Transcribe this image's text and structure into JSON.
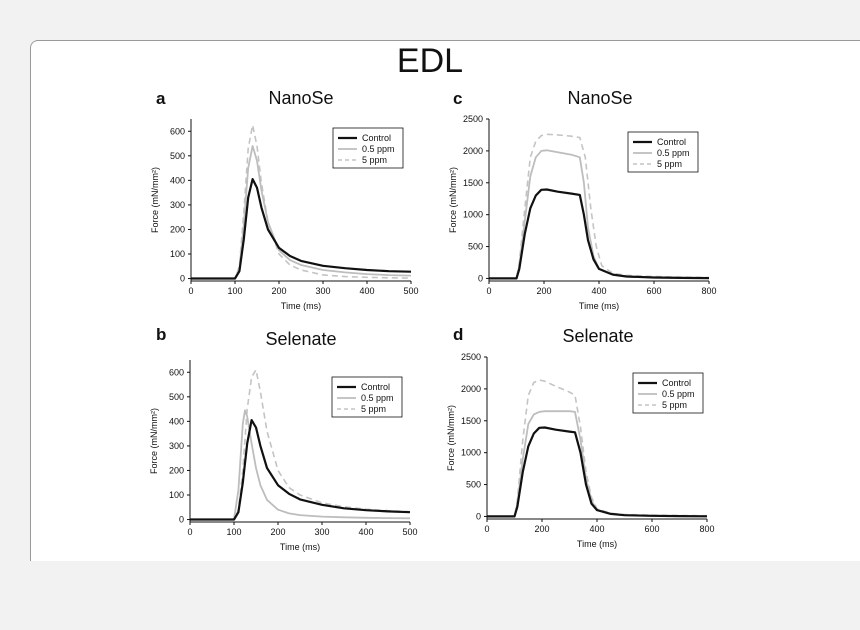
{
  "figure": {
    "title": "EDL"
  },
  "series_styles": {
    "Control": {
      "color": "#111111",
      "dash": "",
      "width": 2.2
    },
    "0.5 ppm": {
      "color": "#bdbdbd",
      "dash": "",
      "width": 1.8
    },
    "5 ppm": {
      "color": "#c4c4c4",
      "dash": "6,4",
      "width": 1.6
    }
  },
  "chart_data": [
    {
      "type": "line",
      "id": "a",
      "letter": "a",
      "title": "NanoSe",
      "xlabel": "Time (ms)",
      "ylabel": "Force (mN/mm²)",
      "xlim": [
        0,
        500
      ],
      "ylim": [
        -10,
        650
      ],
      "xticks": [
        0,
        100,
        200,
        300,
        400,
        500
      ],
      "yticks": [
        0,
        100,
        200,
        300,
        400,
        500,
        600
      ],
      "legend": "top-right",
      "series": [
        {
          "name": "Control",
          "x": [
            0,
            100,
            110,
            120,
            130,
            140,
            150,
            160,
            175,
            200,
            225,
            250,
            300,
            350,
            400,
            450,
            500
          ],
          "y": [
            0,
            0,
            30,
            160,
            330,
            405,
            370,
            290,
            200,
            125,
            92,
            72,
            52,
            42,
            35,
            30,
            28
          ]
        },
        {
          "name": "0.5 ppm",
          "x": [
            0,
            100,
            110,
            120,
            130,
            140,
            150,
            160,
            175,
            200,
            225,
            250,
            300,
            350,
            400,
            450,
            500
          ],
          "y": [
            0,
            0,
            40,
            220,
            450,
            540,
            480,
            360,
            230,
            115,
            75,
            55,
            35,
            25,
            18,
            14,
            12
          ]
        },
        {
          "name": "5 ppm",
          "x": [
            0,
            100,
            110,
            120,
            130,
            140,
            150,
            160,
            175,
            200,
            225,
            250,
            300,
            350,
            400,
            450,
            500
          ],
          "y": [
            0,
            0,
            50,
            270,
            530,
            625,
            540,
            390,
            230,
            100,
            55,
            35,
            15,
            8,
            5,
            3,
            2
          ]
        }
      ]
    },
    {
      "type": "line",
      "id": "b",
      "letter": "b",
      "title": "Selenate",
      "xlabel": "Time (ms)",
      "ylabel": "Force (mN/mm²)",
      "xlim": [
        0,
        500
      ],
      "ylim": [
        -10,
        650
      ],
      "xticks": [
        0,
        100,
        200,
        300,
        400,
        500
      ],
      "yticks": [
        0,
        100,
        200,
        300,
        400,
        500,
        600
      ],
      "legend": "top-right",
      "series": [
        {
          "name": "Control",
          "x": [
            0,
            100,
            110,
            120,
            130,
            140,
            150,
            160,
            175,
            200,
            225,
            250,
            300,
            350,
            400,
            450,
            500
          ],
          "y": [
            0,
            0,
            30,
            150,
            310,
            405,
            375,
            300,
            210,
            140,
            105,
            82,
            60,
            46,
            38,
            33,
            30
          ]
        },
        {
          "name": "0.5 ppm",
          "x": [
            0,
            100,
            110,
            120,
            125,
            130,
            140,
            150,
            160,
            175,
            200,
            225,
            250,
            300,
            350,
            400,
            450,
            500
          ],
          "y": [
            0,
            0,
            120,
            390,
            445,
            420,
            310,
            210,
            140,
            80,
            40,
            25,
            18,
            12,
            9,
            7,
            6,
            5
          ]
        },
        {
          "name": "5 ppm",
          "x": [
            0,
            100,
            110,
            120,
            130,
            140,
            150,
            160,
            175,
            200,
            225,
            250,
            300,
            350,
            400,
            450,
            500
          ],
          "y": [
            0,
            0,
            40,
            200,
            450,
            580,
            610,
            520,
            360,
            200,
            130,
            100,
            68,
            52,
            42,
            36,
            32
          ]
        }
      ]
    },
    {
      "type": "line",
      "id": "c",
      "letter": "c",
      "title": "NanoSe",
      "xlabel": "Time (ms)",
      "ylabel": "Force (mN/mm²)",
      "xlim": [
        0,
        800
      ],
      "ylim": [
        -40,
        2500
      ],
      "xticks": [
        0,
        200,
        400,
        600,
        800
      ],
      "yticks": [
        0,
        500,
        1000,
        1500,
        2000,
        2500
      ],
      "legend": "top-right",
      "series": [
        {
          "name": "Control",
          "x": [
            0,
            100,
            110,
            130,
            150,
            170,
            190,
            210,
            250,
            300,
            330,
            345,
            360,
            380,
            400,
            450,
            500,
            600,
            700,
            800
          ],
          "y": [
            0,
            0,
            150,
            700,
            1100,
            1300,
            1390,
            1395,
            1360,
            1330,
            1310,
            1000,
            600,
            300,
            150,
            60,
            30,
            15,
            8,
            5
          ]
        },
        {
          "name": "0.5 ppm",
          "x": [
            0,
            100,
            110,
            130,
            150,
            170,
            190,
            210,
            250,
            300,
            330,
            345,
            360,
            380,
            400,
            450,
            500,
            600,
            700,
            800
          ],
          "y": [
            0,
            0,
            200,
            900,
            1600,
            1900,
            2000,
            2010,
            1980,
            1940,
            1900,
            1500,
            800,
            350,
            150,
            60,
            30,
            15,
            8,
            5
          ]
        },
        {
          "name": "5 ppm",
          "x": [
            0,
            100,
            110,
            130,
            150,
            170,
            190,
            210,
            250,
            300,
            330,
            350,
            370,
            390,
            410,
            450,
            500,
            600,
            700,
            800
          ],
          "y": [
            0,
            0,
            250,
            1100,
            1900,
            2150,
            2240,
            2260,
            2250,
            2230,
            2210,
            1900,
            1100,
            500,
            200,
            80,
            50,
            30,
            20,
            15
          ]
        }
      ]
    },
    {
      "type": "line",
      "id": "d",
      "letter": "d",
      "title": "Selenate",
      "xlabel": "Time (ms)",
      "ylabel": "Force (mN/mm²)",
      "xlim": [
        0,
        800
      ],
      "ylim": [
        -40,
        2500
      ],
      "xticks": [
        0,
        200,
        400,
        600,
        800
      ],
      "yticks": [
        0,
        500,
        1000,
        1500,
        2000,
        2500
      ],
      "legend": "top-right",
      "series": [
        {
          "name": "Control",
          "x": [
            0,
            100,
            110,
            130,
            150,
            170,
            190,
            210,
            250,
            300,
            320,
            340,
            360,
            380,
            400,
            450,
            500,
            600,
            700,
            800
          ],
          "y": [
            0,
            0,
            150,
            700,
            1100,
            1300,
            1390,
            1395,
            1360,
            1330,
            1320,
            1000,
            500,
            200,
            100,
            40,
            20,
            10,
            5,
            3
          ]
        },
        {
          "name": "0.5 ppm",
          "x": [
            0,
            100,
            110,
            130,
            150,
            170,
            190,
            210,
            250,
            300,
            320,
            340,
            360,
            380,
            400,
            450,
            500,
            600,
            700,
            800
          ],
          "y": [
            0,
            0,
            200,
            900,
            1450,
            1600,
            1640,
            1650,
            1650,
            1650,
            1640,
            1200,
            600,
            250,
            100,
            40,
            20,
            10,
            5,
            3
          ]
        },
        {
          "name": "5 ppm",
          "x": [
            0,
            100,
            110,
            130,
            150,
            170,
            190,
            210,
            250,
            300,
            320,
            340,
            360,
            380,
            400,
            450,
            500,
            600,
            700,
            800
          ],
          "y": [
            0,
            0,
            250,
            1200,
            1900,
            2100,
            2140,
            2120,
            2040,
            1950,
            1900,
            1400,
            700,
            300,
            120,
            50,
            30,
            20,
            15,
            12
          ]
        }
      ]
    }
  ]
}
